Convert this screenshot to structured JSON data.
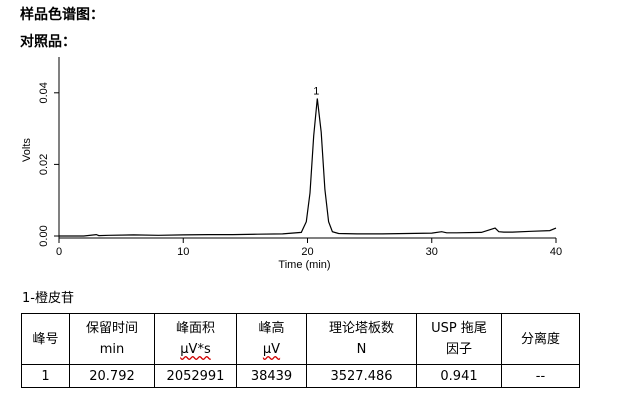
{
  "headings": {
    "sample_chromatogram": "样品色谱图：",
    "reference": "对照品："
  },
  "chart_data": {
    "type": "line",
    "title": "",
    "xlabel": "Time (min)",
    "ylabel": "Volts",
    "xlim": [
      0,
      40
    ],
    "ylim": [
      0,
      0.05
    ],
    "x_ticks": [
      0,
      10,
      20,
      30,
      40
    ],
    "x_tick_labels": [
      "0",
      "10",
      "20",
      "30",
      "40"
    ],
    "y_ticks": [
      0.0,
      0.02,
      0.04
    ],
    "y_tick_labels": [
      "0.00",
      "0.02",
      "0.04"
    ],
    "grid": false,
    "legend": "none",
    "line_color": "#000000",
    "peak": {
      "label": "1",
      "retention_time": 20.792,
      "height": 0.0384
    },
    "baseline": 0.0,
    "series": [
      {
        "x": [
          0,
          2,
          3.0,
          3.2,
          4,
          6,
          8,
          10,
          12,
          14,
          16,
          18,
          19.5,
          19.9,
          20.2,
          20.5,
          20.792,
          21.1,
          21.4,
          21.7,
          22.0,
          22.5,
          24,
          26,
          28,
          30,
          30.8,
          31.2,
          32,
          34,
          35.1,
          35.4,
          35.8,
          36.5,
          38,
          39.5,
          40
        ],
        "y": [
          0.0,
          0.0,
          0.0004,
          0.0001,
          0.0002,
          0.0003,
          0.0002,
          0.0003,
          0.0004,
          0.0004,
          0.0005,
          0.0006,
          0.001,
          0.004,
          0.012,
          0.028,
          0.0384,
          0.029,
          0.013,
          0.004,
          0.0012,
          0.0007,
          0.0006,
          0.0006,
          0.0007,
          0.0008,
          0.0012,
          0.0009,
          0.0009,
          0.001,
          0.0022,
          0.0012,
          0.0011,
          0.0011,
          0.0013,
          0.0015,
          0.0022
        ]
      }
    ]
  },
  "compound": {
    "title": "1-橙皮苷"
  },
  "table": {
    "headers": [
      {
        "line1": "峰号",
        "line2": "",
        "underline": false
      },
      {
        "line1": "保留时间",
        "line2": "min",
        "underline": false
      },
      {
        "line1": "峰面积",
        "line2": "μV*s",
        "underline": true
      },
      {
        "line1": "峰高",
        "line2": "μV",
        "underline": true
      },
      {
        "line1": "理论塔板数",
        "line2": "N",
        "underline": false
      },
      {
        "line1": "USP 拖尾",
        "line2": "因子",
        "underline": false
      },
      {
        "line1": "分离度",
        "line2": "",
        "underline": false
      }
    ],
    "rows": [
      [
        "1",
        "20.792",
        "2052991",
        "38439",
        "3527.486",
        "0.941",
        "--"
      ]
    ]
  }
}
